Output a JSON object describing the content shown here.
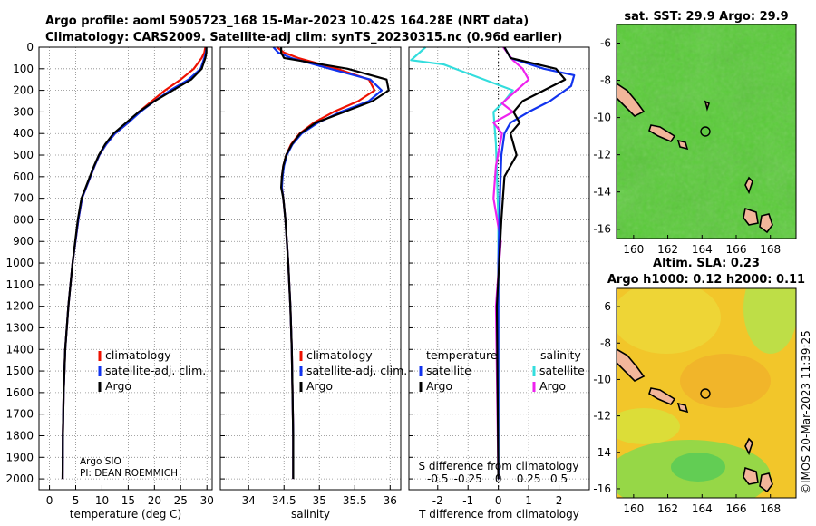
{
  "titles": {
    "line1": "Argo profile: aoml 5905723_168 15-Mar-2023 10.42S 164.28E (NRT data)",
    "line2": "Climatology: CARS2009. Satellite-adj clim: synTS_20230315.nc (0.96d earlier)"
  },
  "footer": {
    "institution": "Argo SIO",
    "pi": "PI: DEAN ROEMMICH",
    "copyright": "©IMOS 20-Mar-2023 11:39:25"
  },
  "colors": {
    "climatology": "#ee1100",
    "satellite": "#1133ee",
    "argo": "#000000",
    "sat_diff": "#33dddd",
    "argo_sal_diff": "#ee22ee"
  },
  "chart_data": [
    {
      "type": "line",
      "name": "temperature-profile",
      "xlabel": "temperature (deg C)",
      "ylabel": "",
      "xlim": [
        -2,
        31
      ],
      "ylim": [
        2050,
        0
      ],
      "xticks": [
        0,
        5,
        10,
        15,
        20,
        25,
        30
      ],
      "yticks": [
        0,
        100,
        200,
        300,
        400,
        500,
        600,
        700,
        800,
        900,
        1000,
        1100,
        1200,
        1300,
        1400,
        1500,
        1600,
        1700,
        1800,
        1900,
        2000
      ],
      "grid": true,
      "legend_position": "lower-center",
      "legend": [
        "climatology",
        "satellite-adj. clim.",
        "Argo"
      ],
      "series": [
        {
          "name": "climatology",
          "color": "#ee1100",
          "x": [
            29.7,
            29.5,
            29.0,
            27.5,
            25.0,
            22.0,
            19.5,
            17.0,
            15.0,
            12.5,
            10.8,
            9.5,
            8.6,
            7.8,
            7.0,
            6.2,
            5.5,
            4.4,
            3.6,
            3.0,
            2.7,
            2.55,
            2.5
          ],
          "y": [
            0,
            25,
            50,
            100,
            150,
            200,
            250,
            300,
            350,
            400,
            450,
            500,
            550,
            600,
            650,
            700,
            800,
            1000,
            1200,
            1400,
            1600,
            1800,
            2000
          ]
        },
        {
          "name": "satellite-adj. clim.",
          "color": "#1133ee",
          "x": [
            29.9,
            29.8,
            29.5,
            28.8,
            26.5,
            23.0,
            20.0,
            17.3,
            15.0,
            12.5,
            10.8,
            9.5,
            8.6,
            7.8,
            7.0,
            6.2,
            5.5,
            4.4,
            3.6,
            3.0,
            2.7,
            2.55,
            2.5
          ],
          "y": [
            0,
            25,
            50,
            100,
            150,
            200,
            250,
            300,
            350,
            400,
            450,
            500,
            550,
            600,
            650,
            700,
            800,
            1000,
            1200,
            1400,
            1600,
            1800,
            2000
          ]
        },
        {
          "name": "Argo",
          "color": "#000000",
          "x": [
            29.9,
            29.9,
            29.7,
            29.0,
            27.0,
            23.5,
            20.0,
            17.0,
            14.6,
            12.2,
            10.6,
            9.4,
            8.5,
            7.7,
            6.9,
            6.1,
            5.4,
            4.4,
            3.6,
            3.0,
            2.7,
            2.55,
            2.5
          ],
          "y": [
            0,
            25,
            50,
            100,
            150,
            200,
            250,
            300,
            350,
            400,
            450,
            500,
            550,
            600,
            650,
            700,
            800,
            1000,
            1200,
            1400,
            1600,
            1800,
            2000
          ]
        }
      ]
    },
    {
      "type": "line",
      "name": "salinity-profile",
      "xlabel": "salinity",
      "xlim": [
        33.6,
        36.15
      ],
      "ylim": [
        2050,
        0
      ],
      "xticks": [
        34,
        34.5,
        35,
        35.5,
        36
      ],
      "grid": true,
      "legend_position": "lower-center",
      "legend": [
        "climatology",
        "satellite-adj. clim.",
        "Argo"
      ],
      "series": [
        {
          "name": "climatology",
          "color": "#ee1100",
          "x": [
            34.4,
            34.5,
            34.7,
            35.25,
            35.7,
            35.78,
            35.55,
            35.2,
            34.92,
            34.72,
            34.6,
            34.53,
            34.49,
            34.47,
            34.47,
            34.49,
            34.52,
            34.56,
            34.59,
            34.61,
            34.62,
            34.63,
            34.63
          ],
          "y": [
            0,
            25,
            50,
            100,
            150,
            200,
            250,
            300,
            350,
            400,
            450,
            500,
            550,
            600,
            650,
            700,
            800,
            1000,
            1200,
            1400,
            1600,
            1800,
            2000
          ]
        },
        {
          "name": "satellite-adj. clim.",
          "color": "#1133ee",
          "x": [
            34.35,
            34.42,
            34.6,
            35.15,
            35.72,
            35.88,
            35.7,
            35.3,
            34.98,
            34.75,
            34.62,
            34.54,
            34.5,
            34.48,
            34.47,
            34.49,
            34.52,
            34.56,
            34.59,
            34.61,
            34.62,
            34.63,
            34.63
          ],
          "y": [
            0,
            25,
            50,
            100,
            150,
            200,
            250,
            300,
            350,
            400,
            450,
            500,
            550,
            600,
            650,
            700,
            800,
            1000,
            1200,
            1400,
            1600,
            1800,
            2000
          ]
        },
        {
          "name": "Argo",
          "color": "#000000",
          "x": [
            34.46,
            34.46,
            34.5,
            35.4,
            35.95,
            35.98,
            35.75,
            35.35,
            34.95,
            34.73,
            34.61,
            34.53,
            34.49,
            34.47,
            34.46,
            34.49,
            34.52,
            34.56,
            34.59,
            34.61,
            34.62,
            34.63,
            34.63
          ],
          "y": [
            0,
            25,
            50,
            100,
            150,
            200,
            250,
            300,
            350,
            400,
            450,
            500,
            550,
            600,
            650,
            700,
            800,
            1000,
            1200,
            1400,
            1600,
            1800,
            2000
          ]
        }
      ]
    },
    {
      "type": "line",
      "name": "difference-profile",
      "xlabel": "T difference from climatology",
      "xlabel_top": "S difference from climatology",
      "xlim": [
        -2.95,
        3.0
      ],
      "ylim": [
        2050,
        0
      ],
      "xticks": [
        -2,
        -1,
        0,
        1,
        2
      ],
      "xticks_s": [
        -0.5,
        -0.25,
        0,
        0.25,
        0.5
      ],
      "s_scale_per_T": 0.25,
      "grid": true,
      "legend_position": "lower-left and lower-right",
      "legend_temperature_title": "temperature",
      "legend_salinity_title": "salinity",
      "legend_temperature": [
        "satellite",
        "Argo"
      ],
      "legend_salinity": [
        "satellite",
        "Argo"
      ],
      "series": [
        {
          "name": "T satellite",
          "color": "#1133ee",
          "x": [
            0.2,
            0.4,
            1.5,
            2.5,
            2.4,
            1.7,
            1.0,
            0.4,
            0.2,
            0.1,
            0.05,
            0.0,
            0.0
          ],
          "y": [
            0,
            50,
            100,
            130,
            180,
            250,
            300,
            350,
            400,
            500,
            700,
            1000,
            2000
          ]
        },
        {
          "name": "T Argo",
          "color": "#000000",
          "x": [
            0.2,
            0.4,
            1.9,
            2.2,
            1.5,
            0.8,
            0.5,
            0.7,
            0.4,
            0.6,
            0.2,
            0.1,
            -0.05,
            0.0
          ],
          "y": [
            0,
            50,
            100,
            150,
            200,
            250,
            300,
            350,
            400,
            500,
            600,
            800,
            1200,
            2000
          ]
        },
        {
          "name": "S satellite",
          "color": "#33dddd",
          "x": [
            -0.6,
            -0.72,
            -0.45,
            0.12,
            0.05,
            -0.04,
            -0.02,
            0.0,
            0.0
          ],
          "y": [
            0,
            60,
            80,
            200,
            250,
            300,
            450,
            800,
            2000
          ]
        },
        {
          "name": "S Argo",
          "color": "#ee22ee",
          "x": [
            0.04,
            0.12,
            0.2,
            0.25,
            0.15,
            0.03,
            0.12,
            -0.04,
            0.03,
            -0.02,
            -0.04,
            0.02,
            -0.02,
            0.0
          ],
          "y": [
            0,
            60,
            100,
            150,
            200,
            260,
            300,
            350,
            400,
            550,
            700,
            900,
            1200,
            2000
          ]
        }
      ]
    },
    {
      "type": "heatmap",
      "name": "sst-map",
      "title": "sat. SST: 29.9 Argo: 29.9",
      "xlim": [
        159,
        169.5
      ],
      "ylim": [
        -16.5,
        -5
      ],
      "xticks": [
        160,
        162,
        164,
        166,
        168
      ],
      "yticks": [
        -6,
        -8,
        -10,
        -12,
        -14,
        -16
      ],
      "float_position": [
        164.28,
        -10.42
      ]
    },
    {
      "type": "heatmap",
      "name": "sla-map",
      "title": "Altim. SLA: 0.23",
      "subtitle": "Argo h1000: 0.12 h2000: 0.11",
      "xlim": [
        159,
        169.5
      ],
      "ylim": [
        -16.5,
        -5
      ],
      "xticks": [
        160,
        162,
        164,
        166,
        168
      ],
      "yticks": [
        -6,
        -8,
        -10,
        -12,
        -14,
        -16
      ],
      "float_position": [
        164.28,
        -10.42
      ]
    }
  ]
}
